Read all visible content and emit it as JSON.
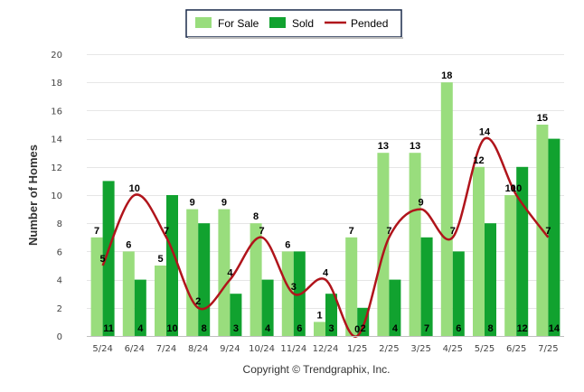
{
  "chart_data": {
    "type": "bar",
    "ylabel": "Number of Homes",
    "ylim": [
      0,
      20
    ],
    "y_ticks": [
      "0",
      "2",
      "4",
      "6",
      "8",
      "10",
      "12",
      "14",
      "16",
      "18",
      "20"
    ],
    "categories": [
      "5/24",
      "6/24",
      "7/24",
      "8/24",
      "9/24",
      "10/24",
      "11/24",
      "12/24",
      "1/25",
      "2/25",
      "3/25",
      "4/25",
      "5/25",
      "6/25",
      "7/25"
    ],
    "series": [
      {
        "name": "For Sale",
        "type": "bar",
        "color": "#99dd7d",
        "values": [
          7,
          6,
          5,
          9,
          9,
          8,
          6,
          1,
          7,
          13,
          13,
          18,
          12,
          10,
          15
        ]
      },
      {
        "name": "Sold",
        "type": "bar",
        "color": "#11a22f",
        "values": [
          11,
          4,
          10,
          8,
          3,
          4,
          6,
          3,
          2,
          4,
          7,
          6,
          8,
          12,
          14
        ]
      },
      {
        "name": "Pended",
        "type": "line",
        "color": "#b0141b",
        "values": [
          5,
          10,
          7,
          2,
          4,
          7,
          3,
          4,
          0,
          7,
          9,
          7,
          14,
          10,
          7
        ]
      }
    ],
    "legend_position": "top-center",
    "grid": true
  },
  "footer": {
    "copyright": "Copyright © Trendgraphix, Inc."
  }
}
